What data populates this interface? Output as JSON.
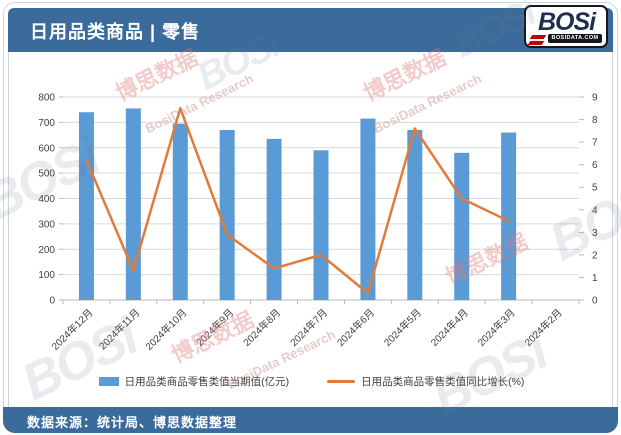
{
  "header": {
    "title": "日用品类商品 | 零售"
  },
  "logo": {
    "text": "BOSi",
    "domain": "BOSIDATA.COM"
  },
  "footer": {
    "source": "数据来源：统计局、博思数据整理"
  },
  "watermarks": {
    "logo": "BOSi",
    "cn": "博思数据",
    "en": "BosiData Research"
  },
  "colors": {
    "header_blue": "#3a6b9b",
    "bar_blue": "#5B9BD5",
    "line_orange": "#E07B39",
    "gridline": "#d9d9d9",
    "axis_text": "#404040"
  },
  "chart_data": {
    "type": "bar+line",
    "categories": [
      "2024年12月",
      "2024年11月",
      "2024年10月",
      "2024年9月",
      "2024年8月",
      "2024年7月",
      "2024年6月",
      "2024年5月",
      "2024年4月",
      "2024年3月",
      "2024年2月"
    ],
    "series": [
      {
        "name": "日用品类商品零售类值当期值(亿元)",
        "type": "bar",
        "axis": "left",
        "color": "#5B9BD5",
        "values": [
          740,
          755,
          695,
          670,
          635,
          590,
          715,
          670,
          580,
          660,
          null
        ]
      },
      {
        "name": "日用品类商品零售类值同比增长(%)",
        "type": "line",
        "axis": "right",
        "color": "#E07B39",
        "values": [
          6.2,
          1.3,
          8.5,
          2.9,
          1.4,
          2.0,
          0.3,
          7.6,
          4.5,
          3.5,
          null
        ]
      }
    ],
    "left_axis": {
      "min": 0,
      "max": 800,
      "step": 100
    },
    "right_axis": {
      "min": 0,
      "max": 9,
      "step": 1
    },
    "grid": true,
    "legend_position": "bottom",
    "x_label_rotation": -45
  }
}
